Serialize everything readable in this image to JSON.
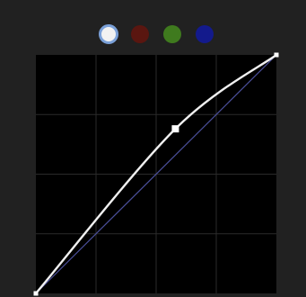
{
  "channels": [
    {
      "name": "rgb",
      "color": "#f2f2f2",
      "selected": true
    },
    {
      "name": "red",
      "color": "#5a1610",
      "selected": false
    },
    {
      "name": "green",
      "color": "#3f7a1e",
      "selected": false
    },
    {
      "name": "blue",
      "color": "#131a8c",
      "selected": false
    }
  ],
  "curve": {
    "grid_divisions": 4,
    "curve_color": "#f0f0f0",
    "baseline_color": "#4a4f9a",
    "control_points": [
      {
        "input": 0.0,
        "output": 0.0
      },
      {
        "input": 0.58,
        "output": 0.69
      },
      {
        "input": 1.0,
        "output": 1.0
      }
    ]
  }
}
